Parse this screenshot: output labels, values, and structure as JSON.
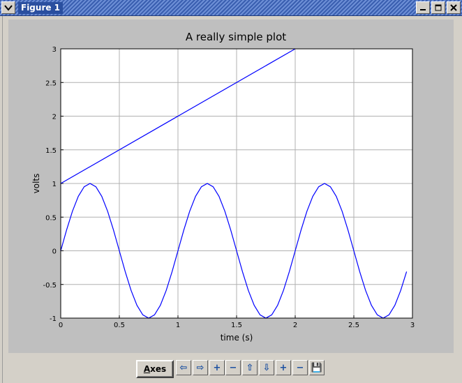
{
  "window": {
    "title": "Figure 1",
    "title_bar_color": "#3a5fb0"
  },
  "toolbar": {
    "axes_label_first": "A",
    "axes_label_rest": "xes",
    "tools": [
      {
        "name": "back-icon",
        "glyph": "⇦"
      },
      {
        "name": "forward-icon",
        "glyph": "⇨"
      },
      {
        "name": "zoom-in-x-icon",
        "glyph": "+"
      },
      {
        "name": "zoom-out-x-icon",
        "glyph": "−"
      },
      {
        "name": "pan-up-icon",
        "glyph": "⇧"
      },
      {
        "name": "pan-down-icon",
        "glyph": "⇩"
      },
      {
        "name": "zoom-in-y-icon",
        "glyph": "+"
      },
      {
        "name": "zoom-out-y-icon",
        "glyph": "−"
      },
      {
        "name": "save-icon",
        "glyph": "💾"
      }
    ]
  },
  "chart_data": {
    "type": "line",
    "title": "A really simple plot",
    "xlabel": "time (s)",
    "ylabel": "volts",
    "xlim": [
      0,
      3
    ],
    "ylim": [
      -1,
      3
    ],
    "xticks": [
      "0",
      "0.5",
      "1",
      "1.5",
      "2",
      "2.5",
      "3"
    ],
    "xtick_values": [
      0,
      0.5,
      1,
      1.5,
      2,
      2.5,
      3
    ],
    "yticks": [
      "-1",
      "-0.5",
      "0",
      "0.5",
      "1",
      "1.5",
      "2",
      "2.5",
      "3"
    ],
    "ytick_values": [
      -1,
      -0.5,
      0,
      0.5,
      1,
      1.5,
      2,
      2.5,
      3
    ],
    "grid": true,
    "line_color": "#0000ff",
    "series": [
      {
        "x": [
          0,
          2
        ],
        "y": [
          1,
          3
        ]
      },
      {
        "x": [
          0,
          0.05,
          0.1,
          0.15,
          0.2,
          0.25,
          0.3,
          0.35,
          0.4,
          0.45,
          0.5,
          0.55,
          0.6,
          0.65,
          0.7,
          0.75,
          0.8,
          0.85,
          0.9,
          0.95,
          1.0,
          1.05,
          1.1,
          1.15,
          1.2,
          1.25,
          1.3,
          1.35,
          1.4,
          1.45,
          1.5,
          1.55,
          1.6,
          1.65,
          1.7,
          1.75,
          1.8,
          1.85,
          1.9,
          1.95,
          2.0,
          2.05,
          2.1,
          2.15,
          2.2,
          2.25,
          2.3,
          2.35,
          2.4,
          2.45,
          2.5,
          2.55,
          2.6,
          2.65,
          2.7,
          2.75,
          2.8,
          2.85,
          2.9,
          2.95
        ],
        "y": [
          0,
          0.309,
          0.588,
          0.809,
          0.951,
          1.0,
          0.951,
          0.809,
          0.588,
          0.309,
          0,
          -0.309,
          -0.588,
          -0.809,
          -0.951,
          -1.0,
          -0.951,
          -0.809,
          -0.588,
          -0.309,
          0,
          0.309,
          0.588,
          0.809,
          0.951,
          1.0,
          0.951,
          0.809,
          0.588,
          0.309,
          0,
          -0.309,
          -0.588,
          -0.809,
          -0.951,
          -1.0,
          -0.951,
          -0.809,
          -0.588,
          -0.309,
          0,
          0.309,
          0.588,
          0.809,
          0.951,
          1.0,
          0.951,
          0.809,
          0.588,
          0.309,
          0,
          -0.309,
          -0.588,
          -0.809,
          -0.951,
          -1.0,
          -0.951,
          -0.809,
          -0.588,
          -0.309
        ]
      }
    ]
  }
}
